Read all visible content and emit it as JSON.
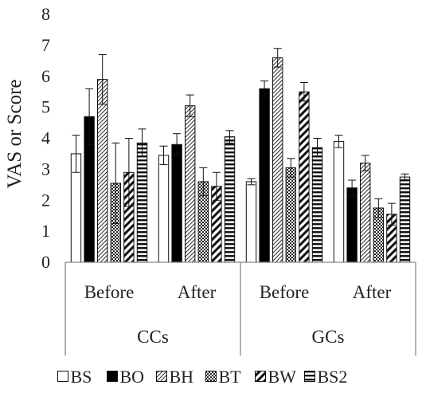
{
  "chart_data": {
    "type": "bar",
    "title": "",
    "ylabel": "VAS or Score",
    "xlabel": "",
    "ylim": [
      0,
      8
    ],
    "yticks": [
      "0",
      "1",
      "2",
      "3",
      "4",
      "5",
      "6",
      "7",
      "8"
    ],
    "groups": [
      {
        "label": "CCs",
        "categories": [
          "Before",
          "After"
        ]
      },
      {
        "label": "GCs",
        "categories": [
          "Before",
          "After"
        ]
      }
    ],
    "series": [
      {
        "name": "BS",
        "pattern": "open",
        "values": [
          3.5,
          3.45,
          2.6,
          3.9
        ],
        "errors": [
          0.6,
          0.3,
          0.1,
          0.2
        ]
      },
      {
        "name": "BO",
        "pattern": "solid",
        "values": [
          4.7,
          3.8,
          5.6,
          2.4
        ],
        "errors": [
          0.9,
          0.35,
          0.25,
          0.25
        ]
      },
      {
        "name": "BH",
        "pattern": "diagonal",
        "values": [
          5.9,
          5.05,
          6.6,
          3.2
        ],
        "errors": [
          0.8,
          0.35,
          0.3,
          0.25
        ]
      },
      {
        "name": "BT",
        "pattern": "checker",
        "values": [
          2.55,
          2.6,
          3.05,
          1.75
        ],
        "errors": [
          1.3,
          0.45,
          0.3,
          0.3
        ]
      },
      {
        "name": "BW",
        "pattern": "wide-diagonal",
        "values": [
          2.9,
          2.45,
          5.5,
          1.55
        ],
        "errors": [
          1.1,
          0.45,
          0.3,
          0.35
        ]
      },
      {
        "name": "BS2",
        "pattern": "horizontal",
        "values": [
          3.85,
          4.05,
          3.7,
          2.75
        ],
        "errors": [
          0.45,
          0.2,
          0.3,
          0.1
        ]
      }
    ],
    "grid": false,
    "legend_position": "bottom"
  }
}
